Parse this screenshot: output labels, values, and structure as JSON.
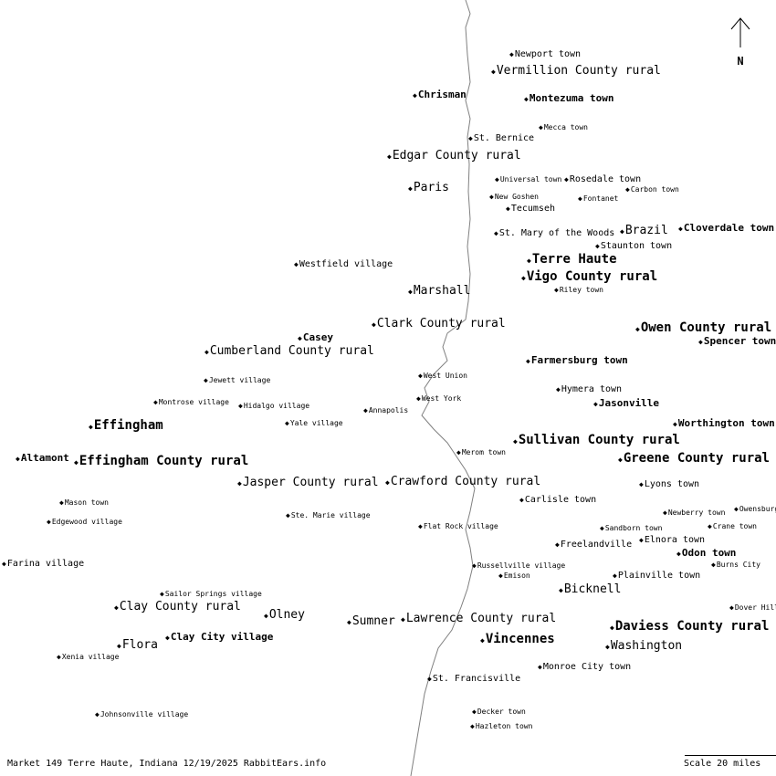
{
  "places": [
    {
      "name": "Newport town",
      "size": "s"
    },
    {
      "name": "Vermillion County rural",
      "size": "m"
    },
    {
      "name": "Chrisman",
      "size": "b"
    },
    {
      "name": "Montezuma town",
      "size": "b"
    },
    {
      "name": "Mecca town",
      "size": "t"
    },
    {
      "name": "St. Bernice",
      "size": "s"
    },
    {
      "name": "Edgar County rural",
      "size": "m"
    },
    {
      "name": "Universal town",
      "size": "t"
    },
    {
      "name": "Rosedale town",
      "size": "s"
    },
    {
      "name": "Carbon town",
      "size": "t"
    },
    {
      "name": "Paris",
      "size": "m"
    },
    {
      "name": "New Goshen",
      "size": "t"
    },
    {
      "name": "Fontanet",
      "size": "t"
    },
    {
      "name": "Tecumseh",
      "size": "s"
    },
    {
      "name": "St. Mary of the Woods",
      "size": "s"
    },
    {
      "name": "Brazil",
      "size": "m"
    },
    {
      "name": "Cloverdale town",
      "size": "b"
    },
    {
      "name": "Staunton town",
      "size": "s"
    },
    {
      "name": "Terre Haute",
      "size": "B"
    },
    {
      "name": "Vigo County rural",
      "size": "B"
    },
    {
      "name": "Riley town",
      "size": "t"
    },
    {
      "name": "Westfield village",
      "size": "s"
    },
    {
      "name": "Marshall",
      "size": "m"
    },
    {
      "name": "Clark County rural",
      "size": "m"
    },
    {
      "name": "Owen County rural",
      "size": "B"
    },
    {
      "name": "Spencer town",
      "size": "b"
    },
    {
      "name": "Casey",
      "size": "b"
    },
    {
      "name": "Cumberland County rural",
      "size": "m"
    },
    {
      "name": "Farmersburg town",
      "size": "b"
    },
    {
      "name": "Jewett village",
      "size": "t"
    },
    {
      "name": "West Union",
      "size": "t"
    },
    {
      "name": "Hymera town",
      "size": "s"
    },
    {
      "name": "West York",
      "size": "t"
    },
    {
      "name": "Jasonville",
      "size": "b"
    },
    {
      "name": "Montrose village",
      "size": "t"
    },
    {
      "name": "Hidalgo village",
      "size": "t"
    },
    {
      "name": "Annapolis",
      "size": "t"
    },
    {
      "name": "Yale village",
      "size": "t"
    },
    {
      "name": "Effingham",
      "size": "B"
    },
    {
      "name": "Worthington town",
      "size": "b"
    },
    {
      "name": "Sullivan County rural",
      "size": "B"
    },
    {
      "name": "Merom town",
      "size": "t"
    },
    {
      "name": "Altamont",
      "size": "b"
    },
    {
      "name": "Effingham County rural",
      "size": "B"
    },
    {
      "name": "Greene County rural",
      "size": "B"
    },
    {
      "name": "Jasper County rural",
      "size": "m"
    },
    {
      "name": "Crawford County rural",
      "size": "m"
    },
    {
      "name": "Lyons town",
      "size": "s"
    },
    {
      "name": "Carlisle town",
      "size": "s"
    },
    {
      "name": "Mason town",
      "size": "t"
    },
    {
      "name": "Owensburg",
      "size": "t"
    },
    {
      "name": "Newberry town",
      "size": "t"
    },
    {
      "name": "Ste. Marie village",
      "size": "t"
    },
    {
      "name": "Edgewood village",
      "size": "t"
    },
    {
      "name": "Flat Rock village",
      "size": "t"
    },
    {
      "name": "Sandborn town",
      "size": "t"
    },
    {
      "name": "Crane town",
      "size": "t"
    },
    {
      "name": "Elnora town",
      "size": "s"
    },
    {
      "name": "Freelandville",
      "size": "s"
    },
    {
      "name": "Odon town",
      "size": "b"
    },
    {
      "name": "Farina village",
      "size": "s"
    },
    {
      "name": "Burns City",
      "size": "t"
    },
    {
      "name": "Russellville village",
      "size": "t"
    },
    {
      "name": "Emison",
      "size": "t"
    },
    {
      "name": "Plainville town",
      "size": "s"
    },
    {
      "name": "Bicknell",
      "size": "m"
    },
    {
      "name": "Sailor Springs village",
      "size": "t"
    },
    {
      "name": "Dover Hill",
      "size": "t"
    },
    {
      "name": "Clay County rural",
      "size": "m"
    },
    {
      "name": "Olney",
      "size": "m"
    },
    {
      "name": "Sumner",
      "size": "m"
    },
    {
      "name": "Lawrence County rural",
      "size": "m"
    },
    {
      "name": "Daviess County rural",
      "size": "B"
    },
    {
      "name": "Vincennes",
      "size": "B"
    },
    {
      "name": "Clay City village",
      "size": "b"
    },
    {
      "name": "Flora",
      "size": "m"
    },
    {
      "name": "Washington",
      "size": "m"
    },
    {
      "name": "Xenia village",
      "size": "t"
    },
    {
      "name": "Monroe City town",
      "size": "s"
    },
    {
      "name": "St. Francisville",
      "size": "s"
    },
    {
      "name": "Decker town",
      "size": "t"
    },
    {
      "name": "Johnsonville village",
      "size": "t"
    },
    {
      "name": "Hazleton town",
      "size": "t"
    }
  ],
  "marker_glyph": "◆",
  "north_label": "N",
  "footer": {
    "caption": "Market 149 Terre Haute, Indiana 12/19/2025 RabbitEars.info",
    "scale": "Scale 20 miles"
  },
  "colors": {
    "background": "#ffffff",
    "text": "#000000",
    "river": "#808080"
  }
}
